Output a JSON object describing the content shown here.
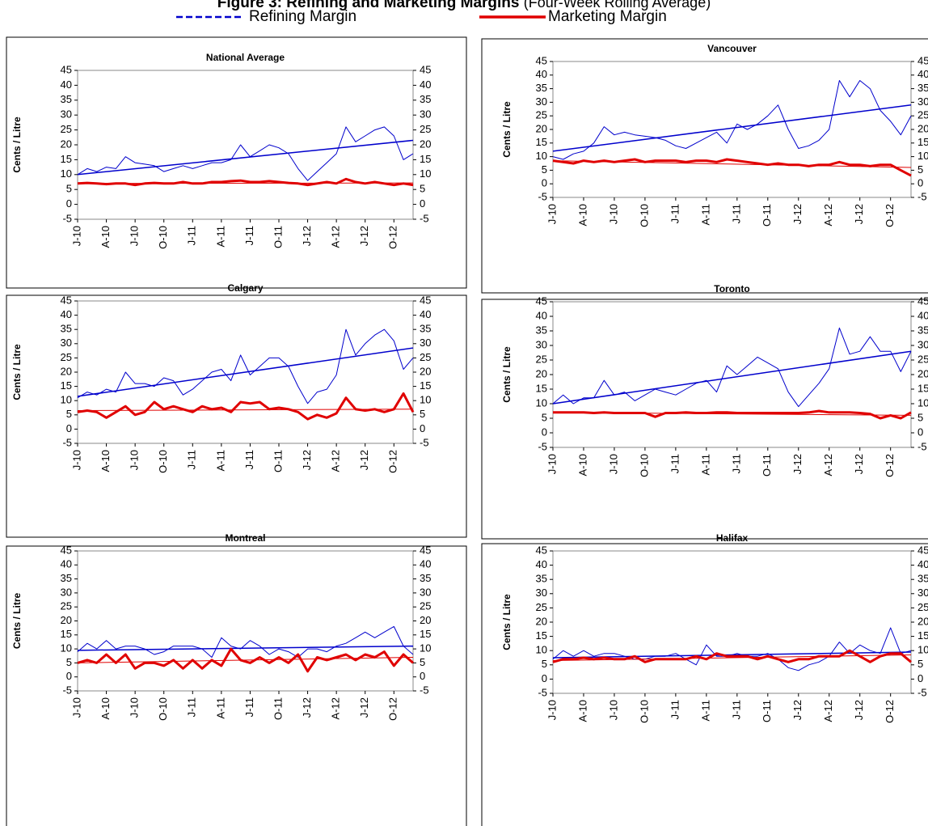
{
  "figure_title": {
    "main": "Figure 3: Refining and Marketing Margins",
    "note": "(Four-Week Rolling Average)"
  },
  "chart_data": [
    {
      "type": "line",
      "title": "National Average",
      "y_label": "Cents / Litre",
      "categories": [
        "J-10",
        null,
        null,
        "A-10",
        null,
        null,
        "J-10",
        null,
        null,
        "O-10",
        null,
        null,
        "J-11",
        null,
        null,
        "A-11",
        null,
        null,
        "J-11",
        null,
        null,
        "O-11",
        null,
        null,
        "J-12",
        null,
        null,
        "A-12",
        null,
        null,
        "J-12",
        null,
        null,
        "O-12",
        null,
        null
      ],
      "ylim": [
        -5,
        45
      ],
      "yticks": [
        -5,
        0,
        5,
        10,
        15,
        20,
        25,
        30,
        35,
        40,
        45
      ],
      "y2lim": [
        -5,
        45
      ],
      "y2ticks": [
        -5,
        0,
        5,
        10,
        15,
        20,
        25,
        30,
        35,
        40,
        45
      ],
      "series": [
        {
          "name": "Refining Margin",
          "color": "#0000cc",
          "values": [
            10,
            12,
            11,
            12.5,
            12,
            16,
            14,
            13.5,
            13,
            11,
            12,
            13,
            12,
            13,
            14,
            14,
            15,
            20,
            16,
            18,
            20,
            19,
            17,
            12,
            8,
            11,
            14,
            17,
            26,
            21,
            23,
            25,
            26,
            23,
            15,
            17
          ],
          "trend": [
            10,
            21.5
          ]
        },
        {
          "name": "Marketing Margin",
          "color": "#e00000",
          "values": [
            7,
            7.2,
            7,
            6.8,
            7,
            7,
            6.5,
            7,
            7.2,
            7,
            7,
            7.5,
            7,
            7,
            7.5,
            7.5,
            7.8,
            8,
            7.5,
            7.5,
            7.8,
            7.5,
            7.2,
            7,
            6.5,
            7,
            7.5,
            7,
            8.5,
            7.5,
            7,
            7.5,
            7,
            6.5,
            7,
            6.5
          ],
          "trend": [
            7,
            7.2
          ]
        }
      ]
    },
    {
      "type": "line",
      "title": "Vancouver",
      "y_label": "Cents / Litre",
      "categories": [
        "J-10",
        null,
        null,
        "A-10",
        null,
        null,
        "J-10",
        null,
        null,
        "O-10",
        null,
        null,
        "J-11",
        null,
        null,
        "A-11",
        null,
        null,
        "J-11",
        null,
        null,
        "O-11",
        null,
        null,
        "J-12",
        null,
        null,
        "A-12",
        null,
        null,
        "J-12",
        null,
        null,
        "O-12",
        null,
        null
      ],
      "ylim": [
        -5,
        45
      ],
      "yticks": [
        -5,
        0,
        5,
        10,
        15,
        20,
        25,
        30,
        35,
        40,
        45
      ],
      "y2lim": [
        -5,
        45
      ],
      "y2ticks": [
        -5,
        0,
        5,
        10,
        15,
        20,
        25,
        30,
        35,
        40,
        45
      ],
      "series": [
        {
          "name": "Refining Margin",
          "color": "#0000cc",
          "values": [
            10,
            9,
            11,
            12,
            15,
            21,
            18,
            19,
            18,
            17.5,
            17,
            16,
            14,
            13,
            15,
            17,
            19,
            15,
            22,
            20,
            22,
            25,
            29,
            20,
            13,
            14,
            16,
            20,
            38,
            32,
            38,
            35,
            27,
            23,
            18,
            25
          ],
          "trend": [
            12,
            29
          ]
        },
        {
          "name": "Marketing Margin",
          "color": "#e00000",
          "values": [
            8.5,
            8,
            7.5,
            8.5,
            8,
            8.5,
            8,
            8.5,
            9,
            8,
            8.5,
            8.5,
            8.5,
            8,
            8.5,
            8.5,
            8,
            9,
            8.5,
            8,
            7.5,
            7,
            7.5,
            7,
            7,
            6.5,
            7,
            7,
            8,
            7,
            7,
            6.5,
            7,
            7,
            5,
            3
          ],
          "trend": [
            8.5,
            6
          ]
        }
      ]
    },
    {
      "type": "line",
      "title": "Calgary",
      "y_label": "Cents / Litre",
      "categories": [
        "J-10",
        null,
        null,
        "A-10",
        null,
        null,
        "J-10",
        null,
        null,
        "O-10",
        null,
        null,
        "J-11",
        null,
        null,
        "A-11",
        null,
        null,
        "J-11",
        null,
        null,
        "O-11",
        null,
        null,
        "J-12",
        null,
        null,
        "A-12",
        null,
        null,
        "J-12",
        null,
        null,
        "O-12",
        null,
        null
      ],
      "ylim": [
        -5,
        45
      ],
      "yticks": [
        -5,
        0,
        5,
        10,
        15,
        20,
        25,
        30,
        35,
        40,
        45
      ],
      "y2lim": [
        -5,
        45
      ],
      "y2ticks": [
        -5,
        0,
        5,
        10,
        15,
        20,
        25,
        30,
        35,
        40,
        45
      ],
      "series": [
        {
          "name": "Refining Margin",
          "color": "#0000cc",
          "values": [
            11,
            13,
            12,
            14,
            13,
            20,
            16,
            16,
            15,
            18,
            17,
            12,
            14,
            17,
            20,
            21,
            17,
            26,
            19,
            22,
            25,
            25,
            22,
            15,
            9,
            13,
            14,
            19,
            35,
            26,
            30,
            33,
            35,
            31,
            21,
            25
          ],
          "trend": [
            11.5,
            28.5
          ]
        },
        {
          "name": "Marketing Margin",
          "color": "#e00000",
          "values": [
            6,
            6.5,
            6,
            4,
            6,
            8,
            5,
            6,
            9.5,
            7,
            8,
            7,
            6,
            8,
            7,
            7.5,
            6,
            9.5,
            9,
            9.5,
            7,
            7.5,
            7,
            6,
            3.5,
            5,
            4,
            5.5,
            11,
            7,
            6.5,
            7,
            6,
            7,
            12.5,
            6
          ],
          "trend": [
            6.5,
            7
          ]
        }
      ]
    },
    {
      "type": "line",
      "title": "Toronto",
      "y_label": "Cents / Litre",
      "categories": [
        "J-10",
        null,
        null,
        "A-10",
        null,
        null,
        "J-10",
        null,
        null,
        "O-10",
        null,
        null,
        "J-11",
        null,
        null,
        "A-11",
        null,
        null,
        "J-11",
        null,
        null,
        "O-11",
        null,
        null,
        "J-12",
        null,
        null,
        "A-12",
        null,
        null,
        "J-12",
        null,
        null,
        "O-12",
        null,
        null
      ],
      "ylim": [
        -5,
        45
      ],
      "yticks": [
        -5,
        0,
        5,
        10,
        15,
        20,
        25,
        30,
        35,
        40,
        45
      ],
      "y2lim": [
        -5,
        45
      ],
      "y2ticks": [
        -5,
        0,
        5,
        10,
        15,
        20,
        25,
        30,
        35,
        40,
        45
      ],
      "series": [
        {
          "name": "Refining Margin",
          "color": "#0000cc",
          "values": [
            10,
            13,
            10,
            12,
            12,
            18,
            13,
            14,
            11,
            13,
            15,
            14,
            13,
            15,
            17,
            18,
            14,
            23,
            20,
            23,
            26,
            24,
            22,
            14,
            9,
            13,
            17,
            22,
            36,
            27,
            28,
            33,
            28,
            28,
            21,
            28
          ],
          "trend": [
            10,
            28
          ]
        },
        {
          "name": "Marketing Margin",
          "color": "#e00000",
          "values": [
            7,
            7,
            7,
            7,
            6.8,
            7,
            6.8,
            6.8,
            6.8,
            6.8,
            5.5,
            6.8,
            6.8,
            7,
            6.8,
            6.8,
            7,
            7,
            6.8,
            6.8,
            6.8,
            6.8,
            6.8,
            6.8,
            6.8,
            7,
            7.5,
            7,
            7,
            7,
            6.8,
            6.5,
            5,
            6,
            5,
            7
          ],
          "trend": [
            7,
            6
          ]
        }
      ]
    },
    {
      "type": "line",
      "title": "Montreal",
      "y_label": "Cents / Litre",
      "categories": [
        "J-10",
        null,
        null,
        "A-10",
        null,
        null,
        "J-10",
        null,
        null,
        "O-10",
        null,
        null,
        "J-11",
        null,
        null,
        "A-11",
        null,
        null,
        "J-11",
        null,
        null,
        "O-11",
        null,
        null,
        "J-12",
        null,
        null,
        "A-12",
        null,
        null,
        "J-12",
        null,
        null,
        "O-12",
        null,
        null
      ],
      "ylim": [
        -5,
        45
      ],
      "yticks": [
        -5,
        0,
        5,
        10,
        15,
        20,
        25,
        30,
        35,
        40,
        45
      ],
      "y2lim": [
        -5,
        45
      ],
      "y2ticks": [
        -5,
        0,
        5,
        10,
        15,
        20,
        25,
        30,
        35,
        40,
        45
      ],
      "series": [
        {
          "name": "Refining Margin",
          "color": "#0000cc",
          "values": [
            9,
            12,
            10,
            13,
            10,
            11,
            11,
            10,
            8,
            9,
            11,
            11,
            11,
            10,
            7,
            14,
            11,
            10,
            13,
            11,
            8,
            10,
            9,
            7,
            10,
            10,
            9,
            11,
            12,
            14,
            16,
            14,
            16,
            18,
            11,
            8
          ],
          "trend": [
            9.5,
            11
          ]
        },
        {
          "name": "Marketing Margin",
          "color": "#e00000",
          "values": [
            5,
            6,
            5,
            8,
            5,
            8,
            3,
            5,
            5,
            4,
            6,
            3,
            6,
            3,
            6,
            4,
            10,
            6,
            5,
            7,
            5,
            7,
            5,
            8,
            2,
            7,
            6,
            7,
            8,
            6,
            8,
            7,
            9,
            4,
            8,
            5
          ],
          "trend": [
            5,
            7
          ]
        }
      ]
    },
    {
      "type": "line",
      "title": "Halifax",
      "y_label": "Cents / Litre",
      "categories": [
        "J-10",
        null,
        null,
        "A-10",
        null,
        null,
        "J-10",
        null,
        null,
        "O-10",
        null,
        null,
        "J-11",
        null,
        null,
        "A-11",
        null,
        null,
        "J-11",
        null,
        null,
        "O-11",
        null,
        null,
        "J-12",
        null,
        null,
        "A-12",
        null,
        null,
        "J-12",
        null,
        null,
        "O-12",
        null,
        null
      ],
      "ylim": [
        -5,
        45
      ],
      "yticks": [
        -5,
        0,
        5,
        10,
        15,
        20,
        25,
        30,
        35,
        40,
        45
      ],
      "y2lim": [
        -5,
        45
      ],
      "y2ticks": [
        -5,
        0,
        5,
        10,
        15,
        20,
        25,
        30,
        35,
        40,
        45
      ],
      "series": [
        {
          "name": "Refining Margin",
          "color": "#0000cc",
          "values": [
            7,
            10,
            8,
            10,
            8,
            9,
            9,
            8,
            7,
            7,
            8,
            8,
            9,
            7,
            5,
            12,
            8,
            8,
            9,
            8,
            8,
            9,
            7,
            4,
            3,
            5,
            6,
            8,
            13,
            9,
            12,
            10,
            9,
            18,
            9,
            10
          ],
          "trend": [
            7.5,
            9.5
          ]
        },
        {
          "name": "Marketing Margin",
          "color": "#e00000",
          "values": [
            6,
            7,
            7,
            7.5,
            7,
            7.5,
            7,
            7,
            8,
            6,
            7,
            7,
            7,
            7,
            8,
            7,
            9,
            8,
            8,
            8,
            7,
            8,
            7,
            6,
            7,
            7,
            8,
            8,
            8,
            10,
            8,
            6,
            8,
            9,
            9,
            6
          ],
          "trend": [
            6.5,
            8.5
          ]
        }
      ]
    }
  ]
}
